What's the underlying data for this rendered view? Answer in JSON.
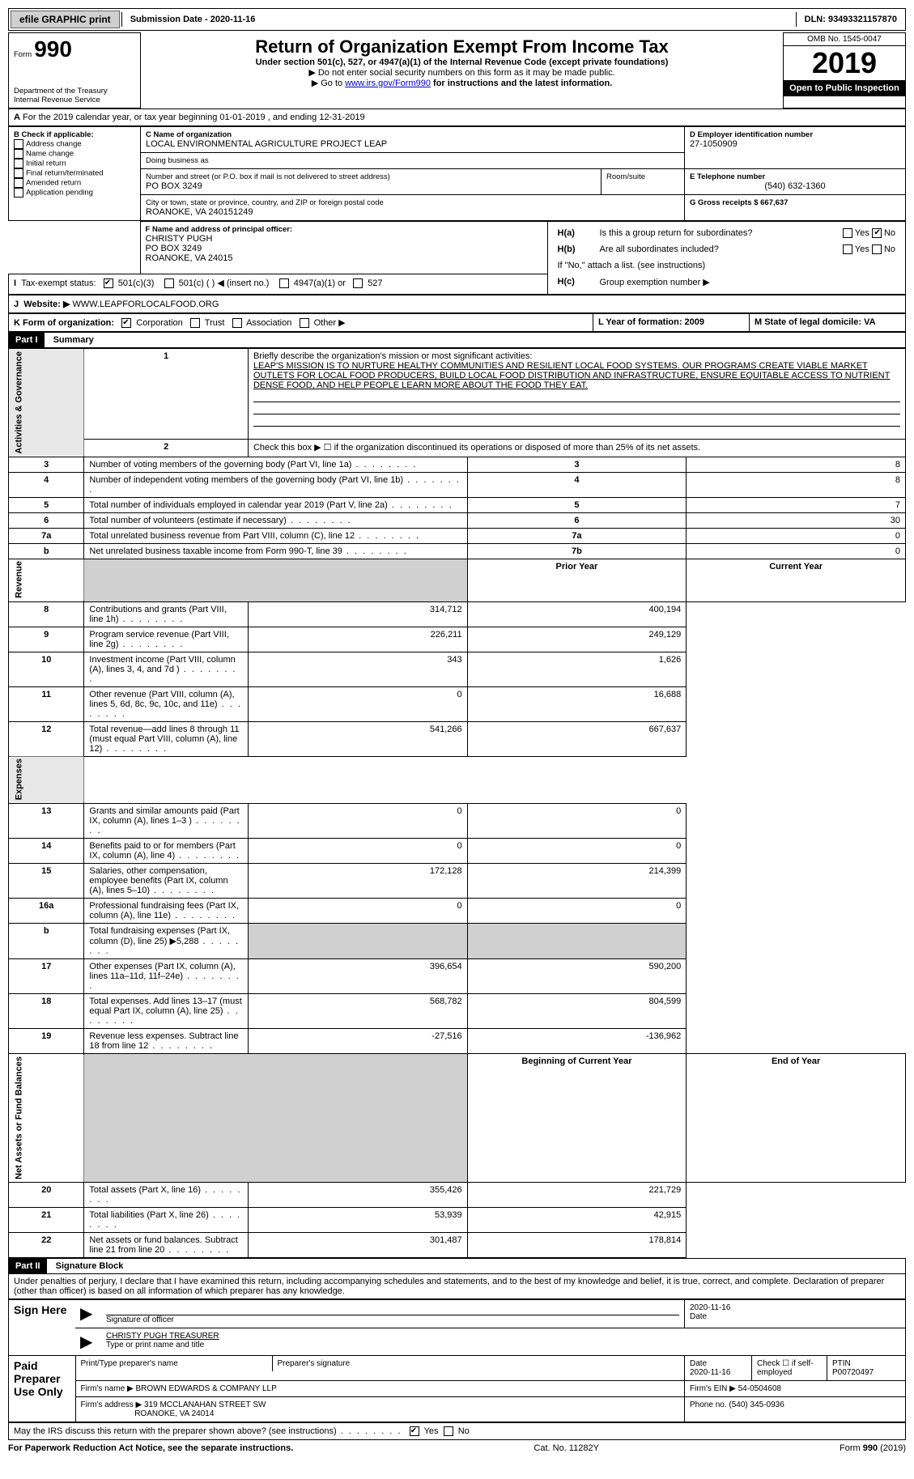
{
  "topbar": {
    "efile_label": "efile GRAPHIC print",
    "submission_label": "Submission Date - 2020-11-16",
    "dln_label": "DLN: 93493321157870"
  },
  "header": {
    "form_label": "Form",
    "form_number": "990",
    "title": "Return of Organization Exempt From Income Tax",
    "subtitle": "Under section 501(c), 527, or 4947(a)(1) of the Internal Revenue Code (except private foundations)",
    "line_ssn": "▶ Do not enter social security numbers on this form as it may be made public.",
    "line_goto_pre": "▶ Go to ",
    "line_goto_link": "www.irs.gov/Form990",
    "line_goto_post": " for instructions and the latest information.",
    "dept": "Department of the Treasury\nInternal Revenue Service",
    "omb": "OMB No. 1545-0047",
    "year": "2019",
    "open_public": "Open to Public Inspection"
  },
  "periodA": "For the 2019 calendar year, or tax year beginning 01-01-2019   , and ending 12-31-2019",
  "boxB": {
    "label": "B Check if applicable:",
    "items": [
      "Address change",
      "Name change",
      "Initial return",
      "Final return/terminated",
      "Amended return",
      "Application pending"
    ]
  },
  "boxC": {
    "label_name": "C Name of organization",
    "name": "LOCAL ENVIRONMENTAL AGRICULTURE PROJECT LEAP",
    "dba_label": "Doing business as",
    "addr_label": "Number and street (or P.O. box if mail is not delivered to street address)",
    "room_label": "Room/suite",
    "addr": "PO BOX 3249",
    "city_label": "City or town, state or province, country, and ZIP or foreign postal code",
    "city": "ROANOKE, VA  240151249"
  },
  "boxD": {
    "label": "D Employer identification number",
    "value": "27-1050909"
  },
  "boxE": {
    "label": "E Telephone number",
    "value": "(540) 632-1360"
  },
  "boxG": {
    "label": "G Gross receipts $ 667,637"
  },
  "boxF": {
    "label": "F  Name and address of principal officer:",
    "name": "CHRISTY PUGH",
    "addr1": "PO BOX 3249",
    "addr2": "ROANOKE, VA  24015"
  },
  "boxH": {
    "a_label": "Is this a group return for subordinates?",
    "b_label": "Are all subordinates included?",
    "b_note": "If \"No,\" attach a list. (see instructions)",
    "c_label": "Group exemption number ▶",
    "ha": "H(a)",
    "hb": "H(b)",
    "hc": "H(c)",
    "yes": "Yes",
    "no": "No"
  },
  "boxI": {
    "label": "Tax-exempt status:",
    "opts": [
      "501(c)(3)",
      "501(c) (  ) ◀ (insert no.)",
      "4947(a)(1) or",
      "527"
    ]
  },
  "boxJ": {
    "label": "Website: ▶",
    "value": "WWW.LEAPFORLOCALFOOD.ORG"
  },
  "boxK": {
    "label": "K Form of organization:",
    "opts": [
      "Corporation",
      "Trust",
      "Association",
      "Other ▶"
    ]
  },
  "boxL": {
    "label": "L Year of formation: 2009"
  },
  "boxM": {
    "label": "M State of legal domicile: VA"
  },
  "part1": {
    "part": "Part I",
    "title": "Summary",
    "line1_label": "Briefly describe the organization's mission or most significant activities:",
    "mission": "LEAP'S MISSION IS TO NURTURE HEALTHY COMMUNITIES AND RESILIENT LOCAL FOOD SYSTEMS. OUR PROGRAMS CREATE VIABLE MARKET OUTLETS FOR LOCAL FOOD PRODUCERS, BUILD LOCAL FOOD DISTRIBUTION AND INFRASTRUCTURE, ENSURE EQUITABLE ACCESS TO NUTRIENT DENSE FOOD, AND HELP PEOPLE LEARN MORE ABOUT THE FOOD THEY EAT.",
    "line2": "Check this box ▶ ☐  if the organization discontinued its operations or disposed of more than 25% of its net assets.",
    "governance": "Activities & Governance",
    "revenue": "Revenue",
    "expenses": "Expenses",
    "netassets": "Net Assets or Fund Balances",
    "rows_gov": [
      {
        "n": "3",
        "d": "Number of voting members of the governing body (Part VI, line 1a)",
        "box": "3",
        "v": "8"
      },
      {
        "n": "4",
        "d": "Number of independent voting members of the governing body (Part VI, line 1b)",
        "box": "4",
        "v": "8"
      },
      {
        "n": "5",
        "d": "Total number of individuals employed in calendar year 2019 (Part V, line 2a)",
        "box": "5",
        "v": "7"
      },
      {
        "n": "6",
        "d": "Total number of volunteers (estimate if necessary)",
        "box": "6",
        "v": "30"
      },
      {
        "n": "7a",
        "d": "Total unrelated business revenue from Part VIII, column (C), line 12",
        "box": "7a",
        "v": "0"
      },
      {
        "n": "b",
        "d": "Net unrelated business taxable income from Form 990-T, line 39",
        "box": "7b",
        "v": "0"
      }
    ],
    "col_prior": "Prior Year",
    "col_current": "Current Year",
    "col_begin": "Beginning of Current Year",
    "col_end": "End of Year",
    "rows_rev": [
      {
        "n": "8",
        "d": "Contributions and grants (Part VIII, line 1h)",
        "p": "314,712",
        "c": "400,194"
      },
      {
        "n": "9",
        "d": "Program service revenue (Part VIII, line 2g)",
        "p": "226,211",
        "c": "249,129"
      },
      {
        "n": "10",
        "d": "Investment income (Part VIII, column (A), lines 3, 4, and 7d )",
        "p": "343",
        "c": "1,626"
      },
      {
        "n": "11",
        "d": "Other revenue (Part VIII, column (A), lines 5, 6d, 8c, 9c, 10c, and 11e)",
        "p": "0",
        "c": "16,688"
      },
      {
        "n": "12",
        "d": "Total revenue—add lines 8 through 11 (must equal Part VIII, column (A), line 12)",
        "p": "541,266",
        "c": "667,637"
      }
    ],
    "rows_exp": [
      {
        "n": "13",
        "d": "Grants and similar amounts paid (Part IX, column (A), lines 1–3 )",
        "p": "0",
        "c": "0"
      },
      {
        "n": "14",
        "d": "Benefits paid to or for members (Part IX, column (A), line 4)",
        "p": "0",
        "c": "0"
      },
      {
        "n": "15",
        "d": "Salaries, other compensation, employee benefits (Part IX, column (A), lines 5–10)",
        "p": "172,128",
        "c": "214,399"
      },
      {
        "n": "16a",
        "d": "Professional fundraising fees (Part IX, column (A), line 11e)",
        "p": "0",
        "c": "0"
      },
      {
        "n": "b",
        "d": "Total fundraising expenses (Part IX, column (D), line 25) ▶5,288",
        "p": "__gray__",
        "c": "__gray__"
      },
      {
        "n": "17",
        "d": "Other expenses (Part IX, column (A), lines 11a–11d, 11f–24e)",
        "p": "396,654",
        "c": "590,200"
      },
      {
        "n": "18",
        "d": "Total expenses. Add lines 13–17 (must equal Part IX, column (A), line 25)",
        "p": "568,782",
        "c": "804,599"
      },
      {
        "n": "19",
        "d": "Revenue less expenses. Subtract line 18 from line 12",
        "p": "-27,516",
        "c": "-136,962"
      }
    ],
    "rows_net": [
      {
        "n": "20",
        "d": "Total assets (Part X, line 16)",
        "p": "355,426",
        "c": "221,729"
      },
      {
        "n": "21",
        "d": "Total liabilities (Part X, line 26)",
        "p": "53,939",
        "c": "42,915"
      },
      {
        "n": "22",
        "d": "Net assets or fund balances. Subtract line 21 from line 20",
        "p": "301,487",
        "c": "178,814"
      }
    ]
  },
  "part2": {
    "part": "Part II",
    "title": "Signature Block",
    "perjury": "Under penalties of perjury, I declare that I have examined this return, including accompanying schedules and statements, and to the best of my knowledge and belief, it is true, correct, and complete. Declaration of preparer (other than officer) is based on all information of which preparer has any knowledge.",
    "sign_here": "Sign Here",
    "sig_officer": "Signature of officer",
    "sig_date": "2020-11-16",
    "date_label": "Date",
    "typed_name": "CHRISTY PUGH  TREASURER",
    "typed_label": "Type or print name and title",
    "paid": "Paid Preparer Use Only",
    "prep_name_label": "Print/Type preparer's name",
    "prep_sig_label": "Preparer's signature",
    "prep_date_label": "Date",
    "prep_date": "2020-11-16",
    "check_self": "Check ☐ if self-employed",
    "ptin_label": "PTIN",
    "ptin": "P00720497",
    "firm_name_label": "Firm's name    ▶",
    "firm_name": "BROWN EDWARDS & COMPANY LLP",
    "firm_ein_label": "Firm's EIN ▶",
    "firm_ein": "54-0504608",
    "firm_addr_label": "Firm's address ▶",
    "firm_addr1": "319 MCCLANAHAN STREET SW",
    "firm_addr2": "ROANOKE, VA  24014",
    "phone_label": "Phone no.",
    "phone": "(540) 345-0936",
    "discuss": "May the IRS discuss this return with the preparer shown above? (see instructions)",
    "yes": "Yes",
    "no": "No"
  },
  "footer": {
    "pra": "For Paperwork Reduction Act Notice, see the separate instructions.",
    "cat": "Cat. No. 11282Y",
    "form": "Form 990 (2019)"
  },
  "colors": {
    "black": "#000000",
    "gray_btn": "#d0d0d0",
    "gray_cell": "#d0d0d0",
    "section_bg": "#e8e8e8",
    "link": "#0000cc"
  }
}
